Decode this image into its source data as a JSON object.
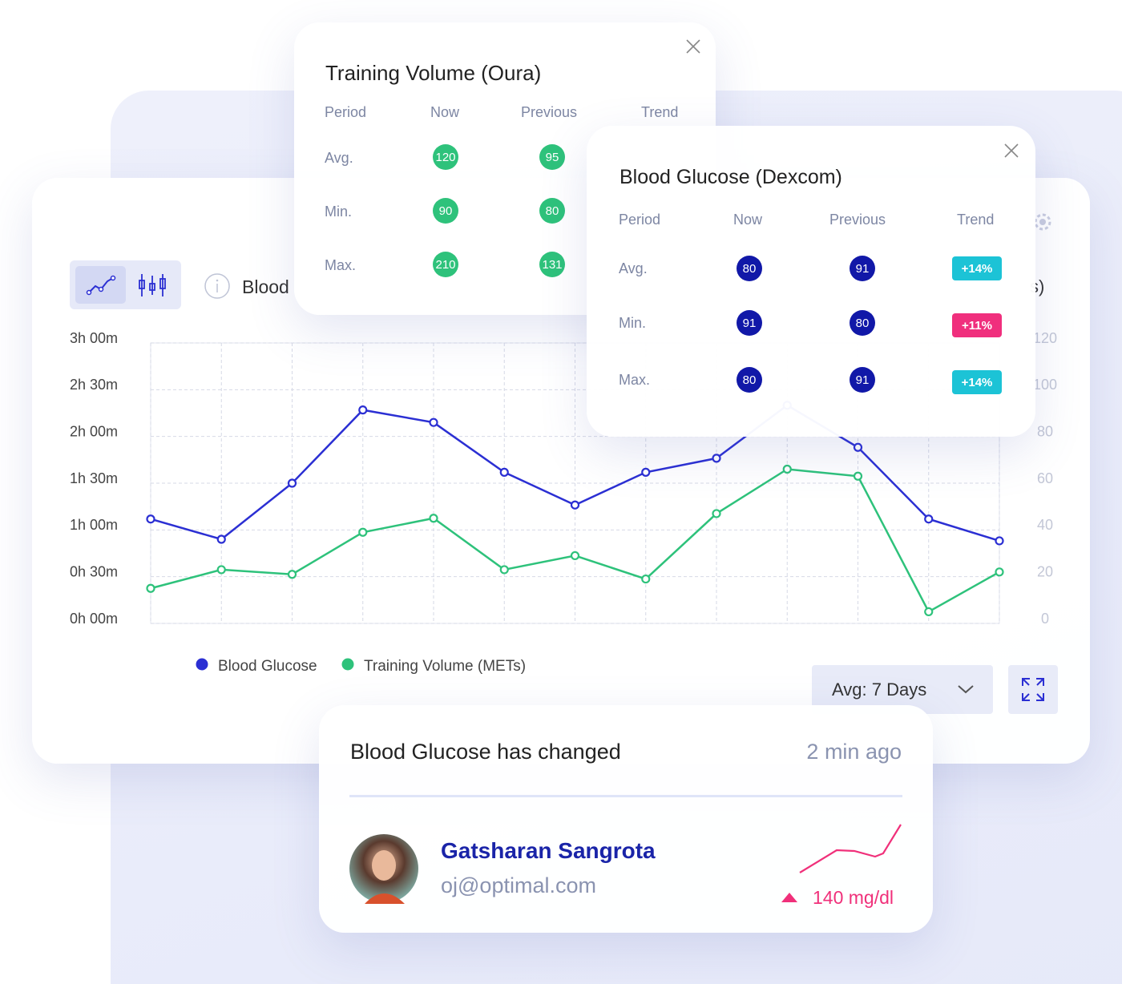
{
  "chart_data": {
    "type": "line",
    "categories": [
      null,
      null,
      null,
      null,
      null,
      null,
      null,
      null,
      null,
      null,
      null,
      null,
      null
    ],
    "series": [
      {
        "name": "Blood Glucose",
        "color": "#2b2fd3",
        "values": [
          67,
          54,
          90,
          137,
          129,
          97,
          76,
          97,
          106,
          140,
          113,
          67,
          53
        ]
      },
      {
        "name": "Training Volume (METs)",
        "color": "#2ec27b",
        "axis": "y2",
        "values": [
          15,
          23,
          21,
          39,
          45,
          23,
          29,
          19,
          47,
          66,
          63,
          5,
          22
        ]
      }
    ],
    "ylim": [
      0,
      180
    ],
    "yticks": [
      {
        "value": 0,
        "label": "0h 00m"
      },
      {
        "value": 30,
        "label": "0h 30m"
      },
      {
        "value": 60,
        "label": "1h 00m"
      },
      {
        "value": 90,
        "label": "1h 30m"
      },
      {
        "value": 120,
        "label": "2h 00m"
      },
      {
        "value": 150,
        "label": "2h 30m"
      },
      {
        "value": 180,
        "label": "3h 00m"
      }
    ],
    "y2lim": [
      0,
      120
    ],
    "y2ticks": [
      0,
      20,
      40,
      60,
      80,
      100,
      120
    ],
    "grid": true
  },
  "main_card": {
    "title": "Blood",
    "title_right": "s)",
    "range_select": "Avg: 7 Days"
  },
  "oura_card": {
    "title": "Training Volume (Oura)",
    "columns": [
      "Period",
      "Now",
      "Previous",
      "Trend"
    ],
    "rows": [
      [
        "Avg.",
        120,
        95
      ],
      [
        "Min.",
        90,
        80
      ],
      [
        "Max.",
        210,
        131
      ]
    ]
  },
  "dexcom_card": {
    "title": "Blood Glucose (Dexcom)",
    "columns": [
      "Period",
      "Now",
      "Previous",
      "Trend"
    ],
    "rows": [
      [
        "Avg.",
        80,
        91,
        "+14%"
      ],
      [
        "Min.",
        91,
        80,
        "+11%"
      ],
      [
        "Max.",
        80,
        91,
        "+14%"
      ]
    ]
  },
  "notification": {
    "title": "Blood Glucose has changed",
    "time": "2 min ago",
    "name": "Gatsharan Sangrota",
    "email": "oj@optimal.com",
    "reading": "140 mg/dl"
  }
}
